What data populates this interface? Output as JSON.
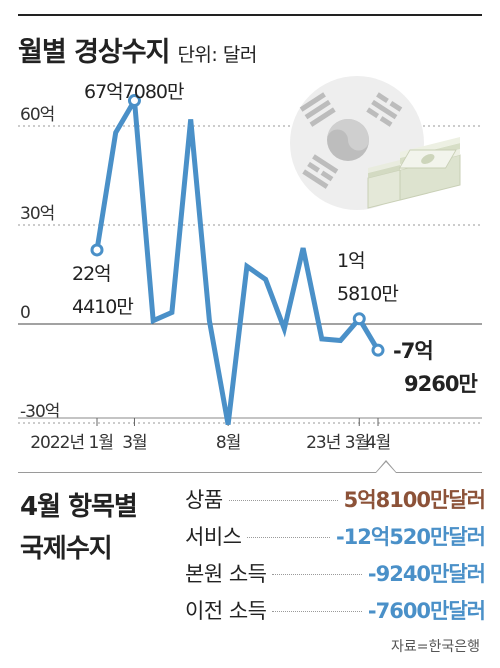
{
  "title": "월별 경상수지",
  "unit": "단위: 달러",
  "chart_data": {
    "type": "line",
    "title": "월별 경상수지",
    "unit": "단위: 달러",
    "y_tick_labels": [
      "60억",
      "30억",
      "0",
      "-30억"
    ],
    "y_ticks_values": [
      60,
      30,
      0,
      -30
    ],
    "ylim": [
      -32,
      75
    ],
    "x_tick_labels": [
      {
        "label": "2022년 1월",
        "index": 0
      },
      {
        "label": "3월",
        "index": 2
      },
      {
        "label": "8월",
        "index": 7
      },
      {
        "label": "23년 3월",
        "index": 14
      },
      {
        "label": "4월",
        "index": 15
      }
    ],
    "series": [
      {
        "color": "#4a90c8",
        "x": [
          "2022-01",
          "2022-02",
          "2022-03",
          "2022-04",
          "2022-05",
          "2022-06",
          "2022-07",
          "2022-08",
          "2022-09",
          "2022-10",
          "2022-11",
          "2022-12",
          "2023-01",
          "2023-02",
          "2023-03",
          "2023-04"
        ],
        "values": [
          22.44,
          58.0,
          67.71,
          1.0,
          3.5,
          62.0,
          1.0,
          -30.5,
          17.5,
          13.5,
          -1.5,
          23.0,
          -4.5,
          -5.0,
          1.58,
          -7.93
        ]
      }
    ],
    "annotations": [
      {
        "index": 0,
        "lines": [
          "22억",
          "4410만"
        ]
      },
      {
        "index": 2,
        "lines": [
          "67억7080만"
        ]
      },
      {
        "index": 14,
        "lines": [
          "1억",
          "5810만"
        ]
      },
      {
        "index": 15,
        "lines": [
          "-7억",
          "9260만"
        ]
      }
    ]
  },
  "breakdown": {
    "title_lines": [
      "4월 항목별",
      "국제수지"
    ],
    "items": [
      {
        "label": "상품",
        "value": "5억8100만달러",
        "color": "#8c5238"
      },
      {
        "label": "서비스",
        "value": "-12억520만달러",
        "color": "#4a90c8"
      },
      {
        "label": "본원 소득",
        "value": "-9240만달러",
        "color": "#4a90c8"
      },
      {
        "label": "이전 소득",
        "value": "-7600만달러",
        "color": "#4a90c8"
      }
    ]
  },
  "source": "자료=한국은행",
  "icons": [
    "korean-flag-icon",
    "dollar-bills-icon"
  ]
}
